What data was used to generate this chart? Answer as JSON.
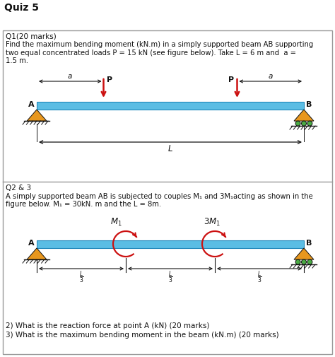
{
  "title": "Quiz 5",
  "q1_header": "Q1(20 marks)",
  "q1_text1": "Find the maximum bending moment (kN.m) in a simply supported beam AB supporting",
  "q1_text2": "two equal concentrated loads P = 15 kN (see figure below). Take L = 6 m and  a =",
  "q1_text3": "1.5 m.",
  "q23_header": "Q2 & 3",
  "q23_text1": "A simply supported beam AB is subjected to couples M₁ and 3M₁acting as shown in the",
  "q23_text2": "figure below. M₁ = 30kN. m and the L = 8m.",
  "q23_q2": "2) What is the reaction force at point A (kN) (20 marks)",
  "q23_q3": "3) What is the maximum bending moment in the beam (kN.m) (20 marks)",
  "beam_color": "#5bbde4",
  "beam_edge": "#2288bb",
  "support_orange": "#e8971e",
  "roller_green": "#4aaa44",
  "red": "#cc1111",
  "black": "#111111",
  "white": "#ffffff",
  "gray_border": "#999999"
}
